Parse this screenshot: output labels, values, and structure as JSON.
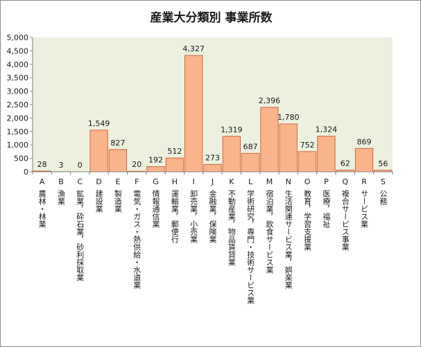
{
  "chart_data": {
    "type": "bar",
    "title": "産業大分類別 事業所数",
    "ylim": [
      0,
      5000
    ],
    "yticks": [
      "0",
      "500",
      "1,000",
      "1,500",
      "2,000",
      "2,500",
      "3,000",
      "3,500",
      "4,000",
      "4,500",
      "5,000"
    ],
    "plot_background": "#ebf1de",
    "bar_color": "#fab48c",
    "bar_edge_color": "#d4653a",
    "grid": false,
    "letters": [
      "A",
      "B",
      "C",
      "D",
      "E",
      "F",
      "G",
      "H",
      "I",
      "J",
      "K",
      "L",
      "M",
      "N",
      "O",
      "P",
      "Q",
      "R",
      "S"
    ],
    "categories": [
      "農林・林業",
      "漁業",
      "鉱業，砕石業，砂利採取業",
      "建設業",
      "製造業",
      "電気・ガス・熱供給・水道業",
      "情報通信業",
      "運輸業，郵便行",
      "卸売業，小売業",
      "金融業，保険業",
      "不動産業，物品賃貸業",
      "学術研究，専門・技術サービス業",
      "宿泊業，飲食サービス業",
      "生活関連サービス業，娯楽業",
      "教育，学習支援業",
      "医療，福祉",
      "複合サービス事業",
      "サービス業",
      "公務"
    ],
    "values": [
      28,
      3,
      0,
      1549,
      827,
      20,
      192,
      512,
      4327,
      273,
      1319,
      687,
      2396,
      1780,
      752,
      1324,
      62,
      869,
      56
    ],
    "value_labels": [
      "28",
      "3",
      "0",
      "1,549",
      "827",
      "20",
      "192",
      "512",
      "4,327",
      "273",
      "1,319",
      "687",
      "2,396",
      "1,780",
      "752",
      "1,324",
      "62",
      "869",
      "56"
    ]
  }
}
